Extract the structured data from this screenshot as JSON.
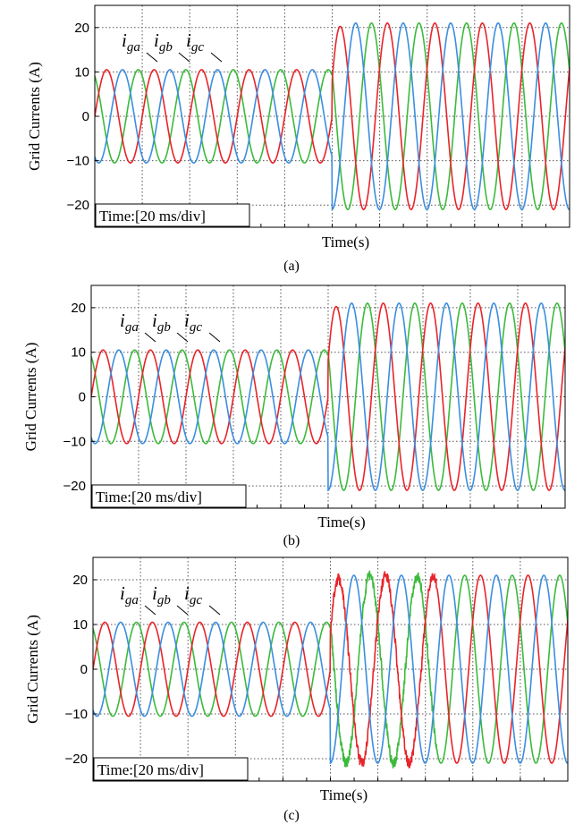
{
  "chart_data": [
    {
      "type": "line",
      "panel_label": "(a)",
      "xlabel": "Time(s)",
      "ylabel": "Grid Currents (A)",
      "ylim": [
        -25,
        25
      ],
      "yticks": [
        20,
        10,
        0,
        -10,
        -20
      ],
      "grid": true,
      "grid_style": "dotted",
      "time_box": "Time:[20 ms/div]",
      "series": [
        {
          "name": "i_ga",
          "color": "#e8242a",
          "phase_deg": 0
        },
        {
          "name": "i_gb",
          "color": "#3b8ee0",
          "phase_deg": -120
        },
        {
          "name": "i_gc",
          "color": "#3cba3c",
          "phase_deg": 120
        }
      ],
      "series_labels": [
        {
          "base": "i",
          "sub": "ga"
        },
        {
          "base": "i",
          "sub": "gb"
        },
        {
          "base": "i",
          "sub": "gc"
        }
      ],
      "frequency_hz": 50,
      "step_time_ms": 100,
      "amplitude_before": 10.5,
      "amplitude_after": 21,
      "time_span_ms": 200,
      "overshoot_A": -23,
      "transient": "none"
    },
    {
      "type": "line",
      "panel_label": "(b)",
      "xlabel": "Time(s)",
      "ylabel": "Grid Currents (A)",
      "ylim": [
        -25,
        25
      ],
      "yticks": [
        20,
        10,
        0,
        -10,
        -20
      ],
      "grid": true,
      "grid_style": "dotted",
      "time_box": "Time:[20 ms/div]",
      "series": [
        {
          "name": "i_ga",
          "color": "#e8242a",
          "phase_deg": 0
        },
        {
          "name": "i_gb",
          "color": "#3b8ee0",
          "phase_deg": -120
        },
        {
          "name": "i_gc",
          "color": "#3cba3c",
          "phase_deg": 120
        }
      ],
      "series_labels": [
        {
          "base": "i",
          "sub": "ga"
        },
        {
          "base": "i",
          "sub": "gb"
        },
        {
          "base": "i",
          "sub": "gc"
        }
      ],
      "frequency_hz": 50,
      "step_time_ms": 100,
      "amplitude_before": 10.5,
      "amplitude_after": 21,
      "time_span_ms": 200,
      "overshoot_A": -23,
      "transient": "none"
    },
    {
      "type": "line",
      "panel_label": "(c)",
      "xlabel": "Time(s)",
      "ylabel": "Grid Currents (A)",
      "ylim": [
        -25,
        25
      ],
      "yticks": [
        20,
        10,
        0,
        -10,
        -20
      ],
      "grid": true,
      "grid_style": "dotted",
      "time_box": "Time:[20 ms/div]",
      "series": [
        {
          "name": "i_ga",
          "color": "#e8242a",
          "phase_deg": 0
        },
        {
          "name": "i_gb",
          "color": "#3b8ee0",
          "phase_deg": -120
        },
        {
          "name": "i_gc",
          "color": "#3cba3c",
          "phase_deg": 120
        }
      ],
      "series_labels": [
        {
          "base": "i",
          "sub": "ga"
        },
        {
          "base": "i",
          "sub": "gb"
        },
        {
          "base": "i",
          "sub": "gc"
        }
      ],
      "frequency_hz": 50,
      "step_time_ms": 100,
      "amplitude_before": 10.5,
      "amplitude_after": 21,
      "time_span_ms": 200,
      "overshoot_A": -24,
      "transient": "ripple"
    }
  ]
}
